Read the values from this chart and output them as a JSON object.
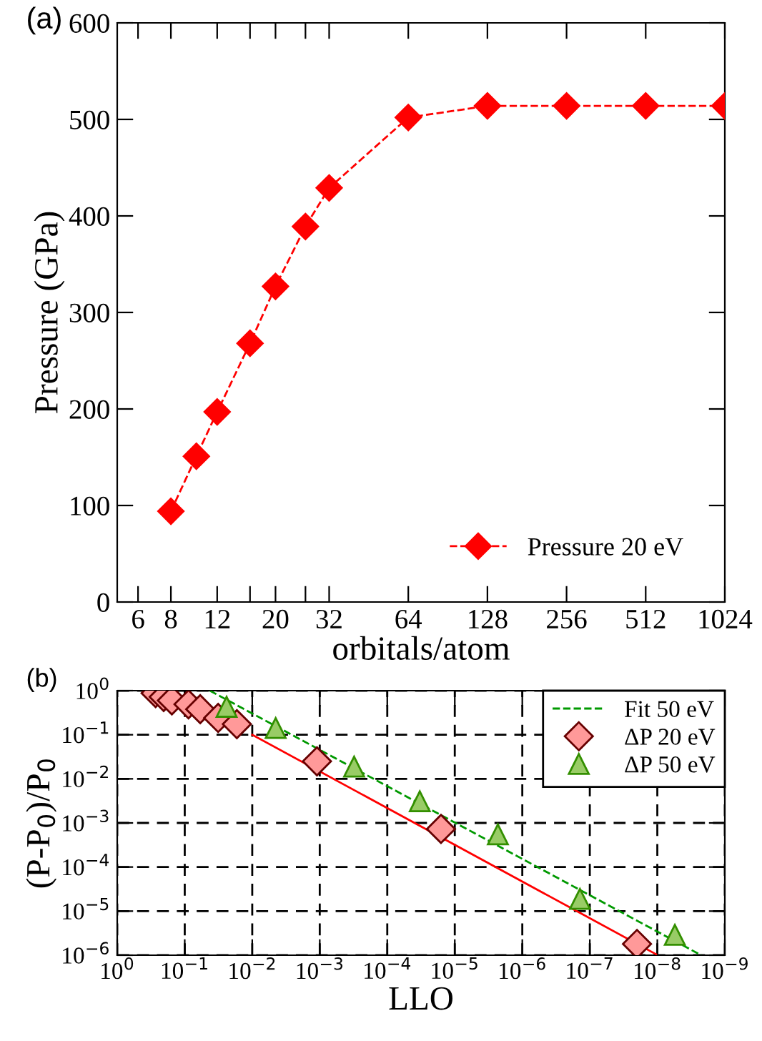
{
  "chart_data": [
    {
      "type": "line",
      "title": "(a)",
      "xlabel": "orbitals/atom",
      "ylabel": "Pressure (GPa)",
      "log": "x",
      "xlim": [
        5,
        1024
      ],
      "xticks": [
        6,
        8,
        12,
        {
          "value": 16,
          "label": null
        },
        20,
        {
          "value": 26,
          "label": null
        },
        32,
        64,
        128,
        256,
        512,
        1024
      ],
      "ylim": [
        0,
        600
      ],
      "yticks": [
        0,
        100,
        200,
        300,
        400,
        500,
        600
      ],
      "grid": false,
      "legend": "bottom right",
      "series": [
        {
          "name": "Pressure 20 eV",
          "color": "#ff0000",
          "marker": "diamond",
          "line_style": "dashed",
          "x": [
            8,
            10,
            12,
            16,
            20,
            26,
            32,
            64,
            128,
            256,
            512,
            1024
          ],
          "values": [
            94,
            151,
            197,
            268,
            327,
            389,
            429,
            502,
            514,
            514,
            514,
            514
          ]
        }
      ]
    },
    {
      "type": "scatter",
      "title": "(b)",
      "xlabel": "LLO",
      "ylabel": "(P-P$_{0}$)/P$_{0}$",
      "log": "xy",
      "xlim": [
        1,
        1e-09
      ],
      "xticks": [
        {
          "value": 1,
          "label": "10$^{0}$"
        },
        {
          "value": 0.1,
          "label": "10$^{−1}$"
        },
        {
          "value": 0.01,
          "label": "10$^{−2}$"
        },
        {
          "value": 0.001,
          "label": "10$^{−3}$"
        },
        {
          "value": 0.0001,
          "label": "10$^{−4}$"
        },
        {
          "value": 1e-05,
          "label": "10$^{−5}$"
        },
        {
          "value": 1e-06,
          "label": "10$^{−6}$"
        },
        {
          "value": 1e-07,
          "label": "10$^{−7}$"
        },
        {
          "value": 1e-08,
          "label": "10$^{−8}$"
        },
        {
          "value": 1e-09,
          "label": "10$^{−9}$"
        }
      ],
      "ylim": [
        1e-06,
        1
      ],
      "yticks": [
        {
          "value": 1e-06,
          "label": "10$^{−6}$"
        },
        {
          "value": 1e-05,
          "label": "10$^{−5}$"
        },
        {
          "value": 0.0001,
          "label": "10$^{−4}$"
        },
        {
          "value": 0.001,
          "label": "10$^{−3}$"
        },
        {
          "value": 0.01,
          "label": "10$^{−2}$"
        },
        {
          "value": 0.1,
          "label": "10$^{−1}$"
        },
        {
          "value": 1,
          "label": "10$^{0}$"
        }
      ],
      "grid": true,
      "legend": "top right",
      "series": [
        {
          "name": "Fit 50 eV",
          "type": "line",
          "color": "#009900",
          "line_style": "dashed",
          "marker": "none",
          "x": [
            0.0425,
            2.24e-09
          ],
          "values": [
            1.0,
            1e-06
          ]
        },
        {
          "type": "line",
          "color": "#ff0000",
          "line_style": "solid",
          "marker": "none",
          "x": [
            0.01,
            1.04e-08
          ],
          "values": [
            0.1,
            1.05e-06
          ]
        },
        {
          "name": "ΔP 20 eV",
          "color": "#ff9999",
          "marker": "diamond",
          "x": [
            0.27,
            0.205,
            0.155,
            0.088,
            0.059,
            0.032,
            0.0169,
            0.0011,
            1.6e-05,
            2e-08
          ],
          "values": [
            0.88,
            0.72,
            0.6,
            0.49,
            0.38,
            0.24,
            0.174,
            0.025,
            0.00073,
            1.8e-06
          ]
        },
        {
          "name": "ΔP 50 eV",
          "color": "#99cc66",
          "marker": "triangle",
          "x": [
            0.024,
            0.0045,
            0.00031,
            3.3e-05,
            2.3e-06,
            1.4e-07,
            5.5e-09
          ],
          "values": [
            0.43,
            0.142,
            0.019,
            0.0031,
            0.00055,
            1.9e-05,
            2.9e-06
          ]
        }
      ]
    }
  ]
}
